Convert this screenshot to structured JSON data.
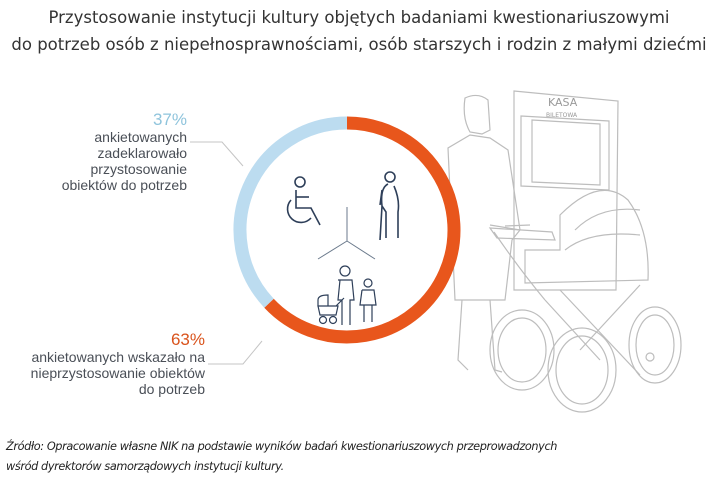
{
  "title": {
    "line1": "Przystosowanie instytucji kultury objętych badaniami kwestionariuszowymi",
    "line2": "do potrzeb osób z niepełnosprawnościami, osób starszych i rodzin z małymi dziećmi"
  },
  "chart_data": {
    "type": "pie",
    "title": "Przystosowanie instytucji kultury objętych badaniami kwestionariuszowymi do potrzeb osób z niepełnosprawnościami, osób starszych i rodzin z małymi dziećmi",
    "slices": [
      {
        "name": "nieprzystosowanie",
        "value": 63,
        "label": "63%",
        "text": [
          "ankietowanych wskazało na",
          "nieprzystosowanie obiektów",
          "do potrzeb"
        ],
        "color": "#e8561c"
      },
      {
        "name": "przystosowanie",
        "value": 37,
        "label": "37%",
        "text": [
          "ankietowanych",
          "zadeklarowało",
          "przystosowanie",
          "obiektów do potrzeb"
        ],
        "color": "#bcdcf0"
      }
    ],
    "donut": true
  },
  "illustration": {
    "sign_line1": "KASA",
    "sign_line2": "BILETOWA"
  },
  "icons": [
    "wheelchair-icon",
    "elderly-person-icon",
    "family-stroller-icon"
  ],
  "source": {
    "line1": "Źródło: Opracowanie własne NIK na podstawie wyników badań kwestionariuszowych przeprowadzonych",
    "line2": "wśród dyrektorów samorządowych instytucji kultury."
  }
}
